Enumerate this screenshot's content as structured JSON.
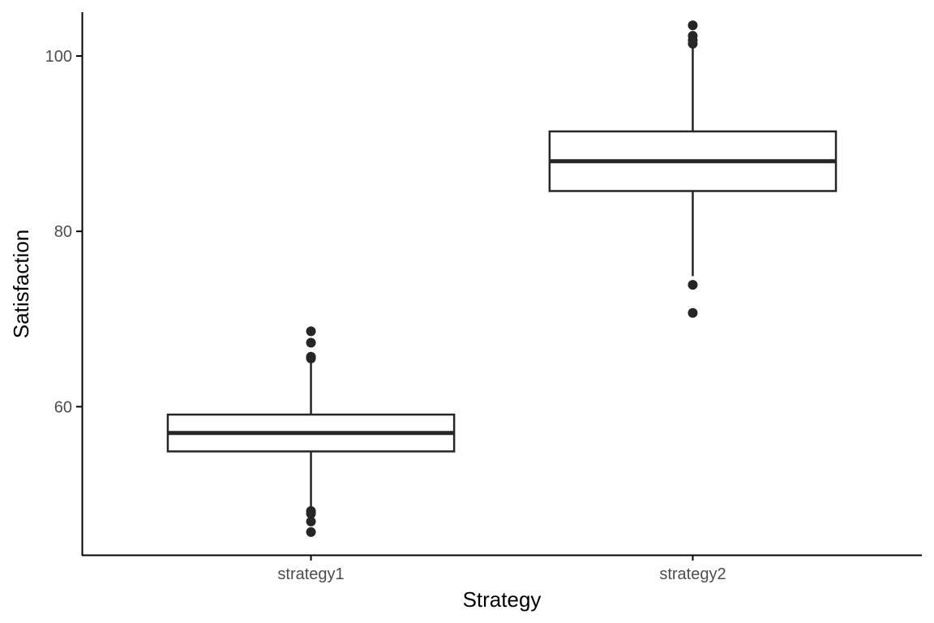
{
  "chart_data": {
    "type": "boxplot",
    "xlabel": "Strategy",
    "ylabel": "Satisfaction",
    "ylim": [
      43.1,
      105
    ],
    "yticks": [
      60,
      80,
      100
    ],
    "grid": false,
    "categories": [
      "strategy1",
      "strategy2"
    ],
    "boxes": [
      {
        "category": "strategy1",
        "whisker_low": 48.6,
        "q1": 54.9,
        "median": 57.0,
        "q3": 59.1,
        "whisker_high": 65.4,
        "outliers": [
          45.7,
          46.9,
          47.8,
          48.1,
          65.5,
          65.7,
          67.3,
          68.6
        ]
      },
      {
        "category": "strategy2",
        "whisker_low": 74.9,
        "q1": 84.6,
        "median": 88.0,
        "q3": 91.4,
        "whisker_high": 101.0,
        "outliers": [
          70.7,
          73.9,
          101.4,
          101.8,
          102.3,
          103.5
        ]
      }
    ]
  },
  "colors": {
    "box_stroke": "#262626",
    "box_fill": "#ffffff",
    "outlier": "#262626",
    "axis": "#000000",
    "tick_text": "#4d4d4d"
  }
}
